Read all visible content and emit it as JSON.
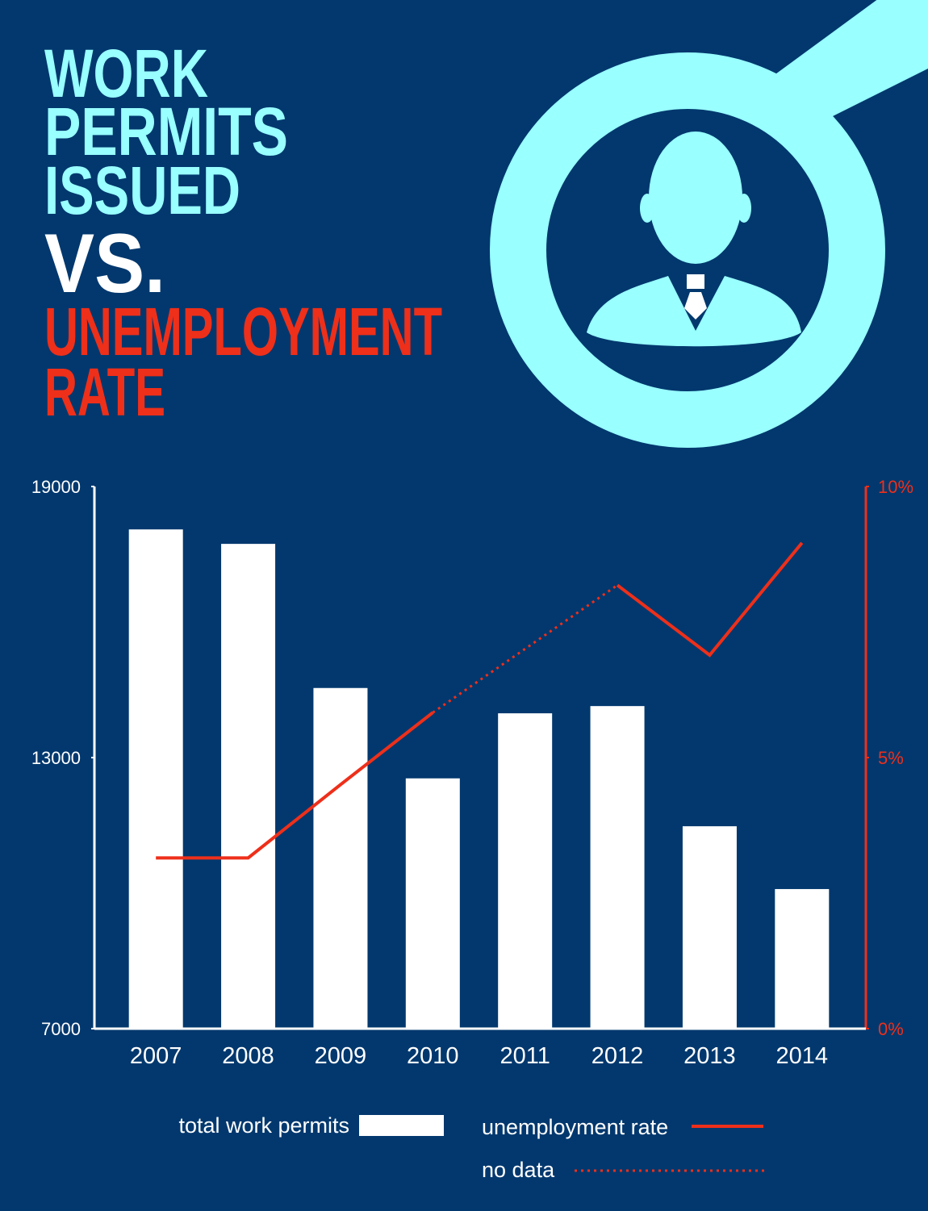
{
  "chart_data": {
    "type": "bar-line",
    "title": [
      "WORK",
      "PERMITS",
      "ISSUED",
      "VS.",
      "UNEMPLOYMENT",
      "RATE"
    ],
    "categories": [
      "2007",
      "2008",
      "2009",
      "2010",
      "2011",
      "2012",
      "2013",
      "2014"
    ],
    "series": [
      {
        "name": "total work permits",
        "color": "#ffffff",
        "values": [
          18050,
          17730,
          14540,
          12540,
          13980,
          14140,
          11480,
          10090
        ]
      },
      {
        "name": "unemployment rate",
        "color": "#ee2f1a",
        "axis": "y2",
        "values": [
          3.15,
          3.15,
          4.5,
          5.83,
          null,
          8.18,
          6.89,
          8.96
        ]
      }
    ],
    "no_data_label": "no data",
    "ylim": [
      7000,
      19000
    ],
    "yticks": [
      7000,
      13000,
      19000
    ],
    "y2lim": [
      0,
      10
    ],
    "y2ticks": [
      {
        "value": 0,
        "label": "0%"
      },
      {
        "value": 5,
        "label": "5%"
      },
      {
        "value": 10,
        "label": "10%"
      }
    ]
  }
}
